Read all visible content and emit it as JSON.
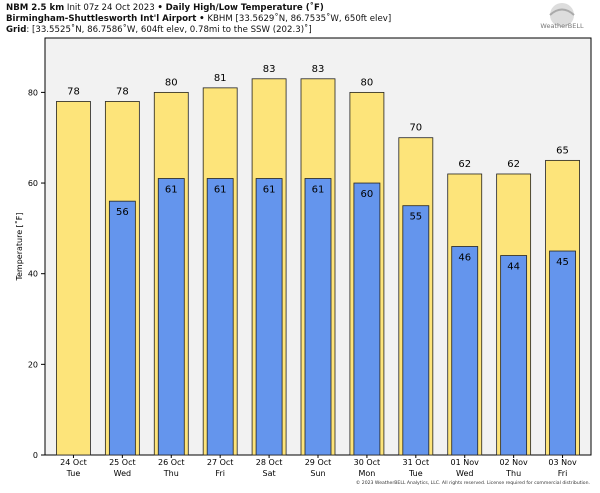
{
  "header": {
    "model": "NBM 2.5 km",
    "init": "Init 07z 24 Oct 2023",
    "sep": "•",
    "title": "Daily High/Low Temperature (˚F)",
    "station": "Birmingham-Shuttlesworth Int'l Airport",
    "station_info": "KBHM [33.5629˚N, 86.7535˚W, 650ft elev]",
    "grid_label": "Grid",
    "grid_info": ": [33.5525˚N, 86.7586˚W, 604ft elev, 0.78mi to the SSW (202.3)˚]"
  },
  "logo_text": "WeatherBELL",
  "copyright": "© 2023 WeatherBELL Analytics, LLC. All rights reserved. License required for commercial distribution.",
  "colors": {
    "high": "#fde47a",
    "low": "#6495ed",
    "background": "#f2f2f2"
  },
  "chart_data": {
    "type": "bar",
    "ylabel": "Temperature [˚F]",
    "ylim": [
      0,
      92
    ],
    "yticks": [
      0,
      20,
      40,
      60,
      80
    ],
    "categories": [
      [
        "24 Oct",
        "Tue"
      ],
      [
        "25 Oct",
        "Wed"
      ],
      [
        "26 Oct",
        "Thu"
      ],
      [
        "27 Oct",
        "Fri"
      ],
      [
        "28 Oct",
        "Sat"
      ],
      [
        "29 Oct",
        "Sun"
      ],
      [
        "30 Oct",
        "Mon"
      ],
      [
        "31 Oct",
        "Tue"
      ],
      [
        "01 Nov",
        "Wed"
      ],
      [
        "02 Nov",
        "Thu"
      ],
      [
        "03 Nov",
        "Fri"
      ]
    ],
    "series": [
      {
        "values": [
          78,
          78,
          80,
          81,
          83,
          83,
          80,
          70,
          62,
          62,
          65
        ]
      },
      {
        "values": [
          null,
          56,
          61,
          61,
          61,
          61,
          60,
          55,
          46,
          44,
          45
        ]
      }
    ],
    "grid": false
  }
}
